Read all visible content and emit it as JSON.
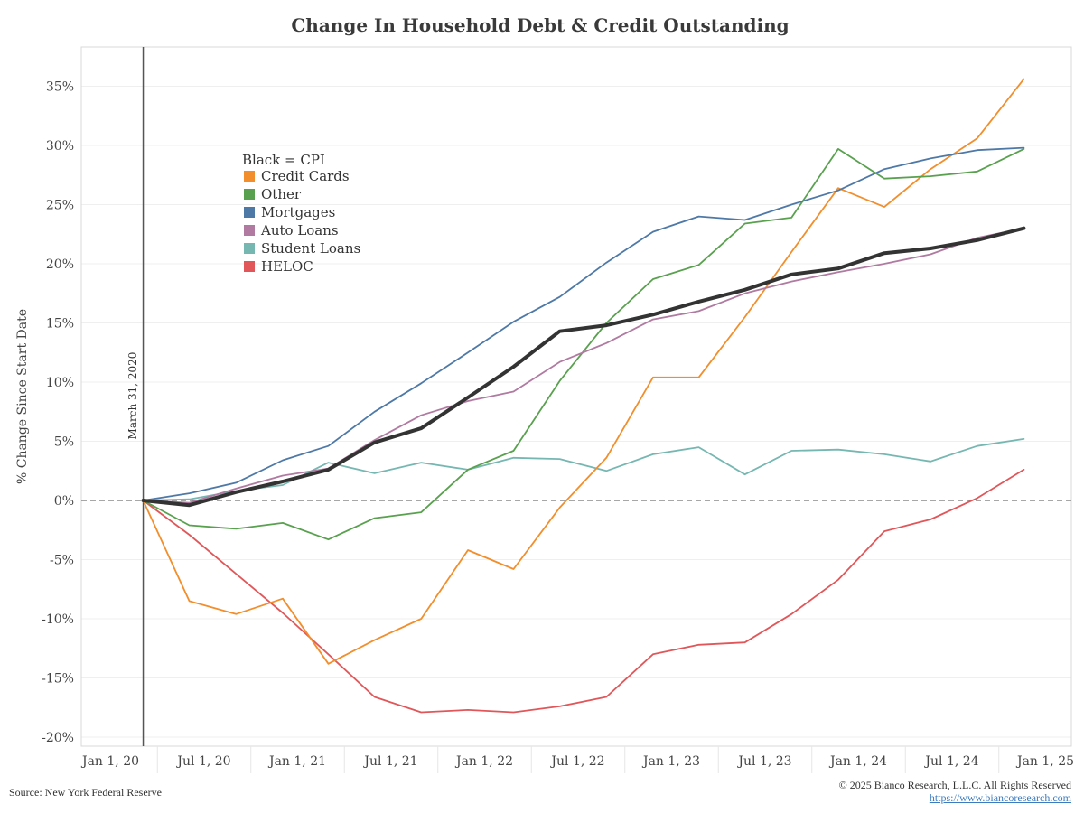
{
  "title": "Change In Household Debt & Credit Outstanding",
  "footer": {
    "source": "Source: New York Federal Reserve",
    "copyright": "© 2025 Bianco Research, L.L.C. All Rights Reserved",
    "url": "https://www.biancoresearch.com"
  },
  "chart_data": {
    "type": "line",
    "title": "Change In Household Debt & Credit Outstanding",
    "xlabel": "",
    "ylabel": "% Change Since Start Date",
    "ylim": [
      -21,
      38
    ],
    "x_ticks": [
      "Jan 1, 20",
      "Jul 1, 20",
      "Jan 1, 21",
      "Jul 1, 21",
      "Jan 1, 22",
      "Jul 1, 22",
      "Jan 1, 23",
      "Jul 1, 23",
      "Jan 1, 24",
      "Jul 1, 24",
      "Jan 1, 25"
    ],
    "y_ticks": [
      -20,
      -15,
      -10,
      -5,
      0,
      5,
      10,
      15,
      20,
      25,
      30,
      35
    ],
    "y_tick_labels": [
      "-20%",
      "-15%",
      "-10%",
      "-5%",
      "0%",
      "5%",
      "10%",
      "15%",
      "20%",
      "25%",
      "30%",
      "35%"
    ],
    "x_dates": [
      "2020-03-31",
      "2020-06-30",
      "2020-09-30",
      "2020-12-31",
      "2021-03-31",
      "2021-06-30",
      "2021-09-30",
      "2021-12-31",
      "2022-03-31",
      "2022-06-30",
      "2022-09-30",
      "2022-12-31",
      "2023-03-31",
      "2023-06-30",
      "2023-09-30",
      "2023-12-31",
      "2024-03-31",
      "2024-06-30",
      "2024-09-30",
      "2024-12-31"
    ],
    "reference_line": {
      "date": "2020-03-31",
      "label": "March 31, 2020"
    },
    "legend_title": "Black = CPI",
    "grid": true,
    "series": [
      {
        "name": "Credit Cards",
        "color": "#f28e2b",
        "values": [
          0,
          -8.5,
          -9.6,
          -8.3,
          -13.8,
          -11.8,
          -10.0,
          -4.2,
          -5.8,
          -0.6,
          3.6,
          10.4,
          10.4,
          15.5,
          21.0,
          26.4,
          24.8,
          28.0,
          30.6,
          35.6
        ]
      },
      {
        "name": "Other",
        "color": "#59a14f",
        "values": [
          0,
          -2.1,
          -2.4,
          -1.9,
          -3.3,
          -1.5,
          -1.0,
          2.6,
          4.2,
          10.1,
          15.0,
          18.7,
          19.9,
          23.4,
          23.9,
          29.7,
          27.2,
          27.4,
          27.8,
          29.7
        ]
      },
      {
        "name": "Mortgages",
        "color": "#4e79a7",
        "values": [
          0,
          0.6,
          1.5,
          3.4,
          4.6,
          7.5,
          9.9,
          12.5,
          15.1,
          17.2,
          20.1,
          22.7,
          24.0,
          23.7,
          25.0,
          26.2,
          28.0,
          28.9,
          29.6,
          29.8
        ]
      },
      {
        "name": "Auto Loans",
        "color": "#b07aa1",
        "values": [
          0,
          -0.2,
          1.0,
          2.1,
          2.7,
          5.1,
          7.2,
          8.4,
          9.2,
          11.7,
          13.3,
          15.3,
          16.0,
          17.5,
          18.5,
          19.3,
          20.0,
          20.8,
          22.2,
          23.0
        ]
      },
      {
        "name": "Student Loans",
        "color": "#76b7b2",
        "values": [
          0,
          0.1,
          0.8,
          1.3,
          3.2,
          2.3,
          3.2,
          2.6,
          3.6,
          3.5,
          2.5,
          3.9,
          4.5,
          2.2,
          4.2,
          4.3,
          3.9,
          3.3,
          4.6,
          5.2
        ]
      },
      {
        "name": "HELOC",
        "color": "#e15759",
        "values": [
          0,
          -2.9,
          -6.2,
          -9.5,
          -13.0,
          -16.6,
          -17.9,
          -17.7,
          -17.9,
          -17.4,
          -16.6,
          -13.0,
          -12.2,
          -12.0,
          -9.6,
          -6.7,
          -2.6,
          -1.6,
          0.2,
          2.6
        ]
      },
      {
        "name": "CPI",
        "color": "#333333",
        "values": [
          0,
          -0.4,
          0.7,
          1.6,
          2.6,
          4.9,
          6.1,
          8.7,
          11.3,
          14.3,
          14.8,
          15.7,
          16.8,
          17.8,
          19.1,
          19.6,
          20.9,
          21.3,
          22.0,
          23.0
        ]
      }
    ]
  }
}
